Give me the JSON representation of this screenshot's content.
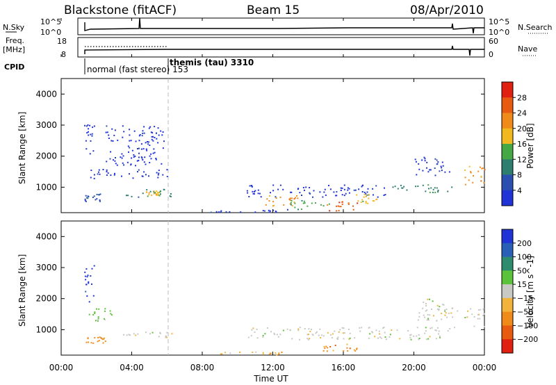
{
  "header": {
    "station": "Blackstone (fitACF)",
    "beam": "Beam 15",
    "date": "08/Apr/2010"
  },
  "top_panels": {
    "nsky_label": "N.Sky",
    "nsky_ticks": [
      "10^5",
      "10^0"
    ],
    "nsearch_label": "N.Search",
    "nsearch_ticks": [
      "10^5",
      "10^0"
    ],
    "freq_label_1": "Freq.",
    "freq_label_2": "[MHz]",
    "freq_ticks": [
      "18",
      "8"
    ],
    "nave_label": "Nave",
    "nave_ticks": [
      "60",
      "0"
    ],
    "cpid_label": "CPID",
    "cpid_1": "normal (fast stereo) 153",
    "cpid_2": "themis (tau) 3310"
  },
  "colors": {
    "power": [
      "#1f33d6",
      "#2a4fb0",
      "#2e7d6e",
      "#45a845",
      "#f2b820",
      "#f08a18",
      "#e85a10",
      "#e02010"
    ],
    "velocity": [
      "#1f33d6",
      "#2a5fb8",
      "#2e8c6e",
      "#5bc23a",
      "#c8c8c4",
      "#f2b33a",
      "#f08a18",
      "#e85a10",
      "#e02010"
    ]
  },
  "chart_data": [
    {
      "type": "heatmap",
      "panel": "power",
      "ylabel": "Slant Range [km]",
      "yticks": [
        "1000",
        "2000",
        "3000",
        "4000"
      ],
      "ylim": [
        180,
        4500
      ],
      "colorbar_label": "Power [dB]",
      "colorbar_ticks": [
        "4",
        "8",
        "12",
        "16",
        "20",
        "24",
        "28"
      ],
      "scatter_regions": [
        {
          "x": [
            1.3,
            1.9
          ],
          "y": [
            1900,
            3100
          ],
          "level": 0
        },
        {
          "x": [
            1.5,
            6.0
          ],
          "y": [
            1300,
            1600
          ],
          "level": 0
        },
        {
          "x": [
            1.3,
            2.2
          ],
          "y": [
            560,
            800
          ],
          "level": 1
        },
        {
          "x": [
            3.5,
            6.2
          ],
          "y": [
            700,
            950
          ],
          "level": 2
        },
        {
          "x": [
            4.8,
            5.6
          ],
          "y": [
            750,
            900
          ],
          "level": 4
        },
        {
          "x": [
            2.5,
            5.8
          ],
          "y": [
            1700,
            3000
          ],
          "level": 0
        },
        {
          "x": [
            10.5,
            18.5
          ],
          "y": [
            700,
            1100
          ],
          "level": 0
        },
        {
          "x": [
            11.5,
            13.5
          ],
          "y": [
            400,
            800
          ],
          "level": 5
        },
        {
          "x": [
            13.0,
            15.2
          ],
          "y": [
            300,
            600
          ],
          "level": 3
        },
        {
          "x": [
            15.0,
            16.8
          ],
          "y": [
            250,
            550
          ],
          "level": 6
        },
        {
          "x": [
            16.5,
            18.0
          ],
          "y": [
            500,
            800
          ],
          "level": 4
        },
        {
          "x": [
            18.5,
            22.5
          ],
          "y": [
            850,
            1100
          ],
          "level": 2
        },
        {
          "x": [
            20.0,
            22.0
          ],
          "y": [
            1400,
            2000
          ],
          "level": 0
        },
        {
          "x": [
            22.8,
            24.0
          ],
          "y": [
            1100,
            1700
          ],
          "level": 5
        },
        {
          "x": [
            8.0,
            13.0
          ],
          "y": [
            200,
            300
          ],
          "level": 0
        }
      ]
    },
    {
      "type": "heatmap",
      "panel": "velocity",
      "ylabel": "Slant Range [km]",
      "yticks": [
        "1000",
        "2000",
        "3000",
        "4000"
      ],
      "ylim": [
        180,
        4500
      ],
      "colorbar_label": "Velocity [m s^-1]",
      "colorbar_ticks": [
        "200",
        "100",
        "50",
        "15",
        "−15",
        "−50",
        "−100",
        "−200"
      ],
      "scatter_regions": [
        {
          "x": [
            1.3,
            1.9
          ],
          "y": [
            1900,
            3100
          ],
          "level": 0
        },
        {
          "x": [
            1.5,
            3.0
          ],
          "y": [
            1300,
            1700
          ],
          "level": 3
        },
        {
          "x": [
            1.3,
            2.5
          ],
          "y": [
            560,
            800
          ],
          "level": 6
        },
        {
          "x": [
            3.5,
            6.3
          ],
          "y": [
            750,
            950
          ],
          "level": 4
        },
        {
          "x": [
            10.5,
            22.5
          ],
          "y": [
            700,
            1100
          ],
          "level": 4
        },
        {
          "x": [
            14.5,
            16.8
          ],
          "y": [
            300,
            550
          ],
          "level": 6
        },
        {
          "x": [
            20.0,
            22.5
          ],
          "y": [
            1300,
            2000
          ],
          "level": 4
        },
        {
          "x": [
            22.8,
            24.0
          ],
          "y": [
            1100,
            1700
          ],
          "level": 4
        },
        {
          "x": [
            8.0,
            13.0
          ],
          "y": [
            200,
            300
          ],
          "level": 5
        }
      ]
    }
  ],
  "xaxis": {
    "label": "Time UT",
    "ticks": [
      "00:00",
      "04:00",
      "08:00",
      "12:00",
      "16:00",
      "20:00",
      "00:00"
    ],
    "xlim": [
      0,
      24
    ]
  }
}
